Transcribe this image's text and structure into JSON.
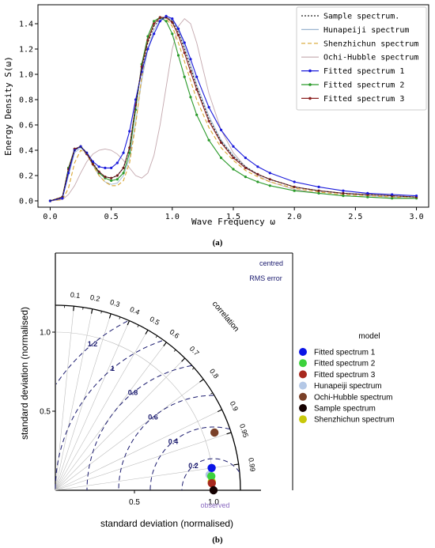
{
  "colors": {
    "sample": "#222222",
    "hunapeiji": "#9bb5d0",
    "shenzhichun": "#d9a530",
    "ochi": "#c4a8ae",
    "fitted1": "#1a1adb",
    "fitted2": "#2a9a2a",
    "fitted3": "#8b2020",
    "rms": "#1a1a6e",
    "correlation": "#000000",
    "observed": "#8a6ac0"
  },
  "panel_labels": {
    "a": "(a)",
    "b": "(b)"
  },
  "chart_data": [
    {
      "type": "line",
      "xlabel": "Wave Frequency ω",
      "ylabel": "Energy Density S(ω)",
      "xlim": [
        -0.1,
        3.1
      ],
      "ylim": [
        -0.05,
        1.55
      ],
      "xticks": [
        0.0,
        0.5,
        1.0,
        1.5,
        2.0,
        2.5,
        3.0
      ],
      "xtick_labels": [
        "0.0",
        "0.5",
        "1.0",
        "1.5",
        "2.0",
        "2.5",
        "3.0"
      ],
      "yticks": [
        0.0,
        0.2,
        0.4,
        0.6,
        0.8,
        1.0,
        1.2,
        1.4
      ],
      "ytick_labels": [
        "0.0",
        "0.2",
        "0.4",
        "0.6",
        "0.8",
        "1.0",
        "1.2",
        "1.4"
      ],
      "grid": false,
      "legend_position": "top-right",
      "series": [
        {
          "name": "Sample spectrum.",
          "key": "sample",
          "style": "dotted",
          "x": [
            0.0,
            0.1,
            0.15,
            0.2,
            0.25,
            0.3,
            0.35,
            0.4,
            0.45,
            0.5,
            0.55,
            0.6,
            0.65,
            0.7,
            0.75,
            0.8,
            0.85,
            0.9,
            0.95,
            1.0,
            1.05,
            1.1,
            1.15,
            1.2,
            1.3,
            1.4,
            1.5,
            1.6,
            1.7,
            1.8,
            2.0,
            2.2,
            2.4,
            2.6,
            2.8,
            3.0
          ],
          "y": [
            0.0,
            0.03,
            0.25,
            0.4,
            0.43,
            0.38,
            0.3,
            0.23,
            0.19,
            0.18,
            0.2,
            0.26,
            0.42,
            0.75,
            1.05,
            1.25,
            1.38,
            1.44,
            1.45,
            1.42,
            1.33,
            1.2,
            1.05,
            0.9,
            0.65,
            0.47,
            0.35,
            0.27,
            0.21,
            0.17,
            0.11,
            0.08,
            0.06,
            0.05,
            0.04,
            0.03
          ]
        },
        {
          "name": "Hunapeiji spectrum",
          "key": "hunapeiji",
          "style": "solid",
          "x": [
            0.0,
            0.1,
            0.15,
            0.2,
            0.25,
            0.3,
            0.35,
            0.4,
            0.45,
            0.5,
            0.55,
            0.6,
            0.65,
            0.7,
            0.75,
            0.8,
            0.85,
            0.9,
            0.95,
            1.0,
            1.05,
            1.1,
            1.15,
            1.2,
            1.3,
            1.4,
            1.5,
            1.6,
            1.7,
            1.8,
            2.0,
            2.2,
            2.4,
            2.6,
            2.8,
            3.0
          ],
          "y": [
            0.0,
            0.02,
            0.2,
            0.38,
            0.42,
            0.37,
            0.28,
            0.2,
            0.15,
            0.13,
            0.14,
            0.2,
            0.34,
            0.62,
            0.95,
            1.2,
            1.35,
            1.43,
            1.45,
            1.43,
            1.35,
            1.22,
            1.08,
            0.92,
            0.67,
            0.48,
            0.36,
            0.27,
            0.21,
            0.17,
            0.11,
            0.08,
            0.06,
            0.04,
            0.03,
            0.02
          ]
        },
        {
          "name": "Shenzhichun spectrum",
          "key": "shenzhichun",
          "style": "dashed",
          "x": [
            0.0,
            0.1,
            0.15,
            0.2,
            0.25,
            0.3,
            0.35,
            0.4,
            0.45,
            0.5,
            0.55,
            0.6,
            0.65,
            0.7,
            0.75,
            0.8,
            0.85,
            0.9,
            0.95,
            1.0,
            1.05,
            1.1,
            1.15,
            1.2,
            1.3,
            1.4,
            1.5,
            1.6,
            1.7,
            1.8,
            2.0,
            2.2,
            2.4,
            2.6,
            2.8,
            3.0
          ],
          "y": [
            0.0,
            0.01,
            0.1,
            0.3,
            0.4,
            0.37,
            0.28,
            0.2,
            0.15,
            0.12,
            0.12,
            0.16,
            0.3,
            0.6,
            0.98,
            1.25,
            1.4,
            1.45,
            1.44,
            1.38,
            1.25,
            1.1,
            0.95,
            0.8,
            0.58,
            0.42,
            0.32,
            0.24,
            0.19,
            0.15,
            0.1,
            0.07,
            0.05,
            0.04,
            0.03,
            0.02
          ]
        },
        {
          "name": "Ochi-Hubble spectrum",
          "key": "ochi",
          "style": "solid",
          "x": [
            0.0,
            0.1,
            0.15,
            0.2,
            0.25,
            0.3,
            0.35,
            0.4,
            0.45,
            0.5,
            0.55,
            0.6,
            0.65,
            0.7,
            0.75,
            0.8,
            0.85,
            0.9,
            0.95,
            1.0,
            1.05,
            1.1,
            1.15,
            1.2,
            1.25,
            1.3,
            1.4,
            1.5,
            1.6,
            1.7,
            1.8,
            2.0,
            2.2,
            2.4,
            2.6,
            2.8,
            3.0
          ],
          "y": [
            0.0,
            0.01,
            0.05,
            0.12,
            0.22,
            0.31,
            0.37,
            0.4,
            0.41,
            0.4,
            0.37,
            0.32,
            0.26,
            0.2,
            0.18,
            0.22,
            0.36,
            0.6,
            0.9,
            1.2,
            1.38,
            1.44,
            1.4,
            1.25,
            1.05,
            0.85,
            0.56,
            0.38,
            0.27,
            0.2,
            0.15,
            0.09,
            0.06,
            0.04,
            0.03,
            0.02,
            0.02
          ]
        },
        {
          "name": "Fitted spectrum 1",
          "key": "fitted1",
          "style": "marker",
          "x": [
            0.0,
            0.1,
            0.15,
            0.2,
            0.25,
            0.3,
            0.35,
            0.4,
            0.45,
            0.5,
            0.55,
            0.6,
            0.65,
            0.7,
            0.75,
            0.8,
            0.85,
            0.9,
            0.95,
            1.0,
            1.05,
            1.1,
            1.15,
            1.2,
            1.3,
            1.4,
            1.5,
            1.6,
            1.7,
            1.8,
            2.0,
            2.2,
            2.4,
            2.6,
            2.8,
            3.0
          ],
          "y": [
            0.0,
            0.02,
            0.22,
            0.4,
            0.43,
            0.38,
            0.31,
            0.27,
            0.26,
            0.26,
            0.3,
            0.38,
            0.55,
            0.8,
            1.02,
            1.2,
            1.32,
            1.42,
            1.46,
            1.44,
            1.36,
            1.25,
            1.12,
            0.98,
            0.74,
            0.56,
            0.43,
            0.34,
            0.27,
            0.22,
            0.15,
            0.11,
            0.08,
            0.06,
            0.05,
            0.04
          ]
        },
        {
          "name": "Fitted spectrum 2",
          "key": "fitted2",
          "style": "marker",
          "x": [
            0.0,
            0.1,
            0.15,
            0.2,
            0.25,
            0.3,
            0.35,
            0.4,
            0.45,
            0.5,
            0.55,
            0.6,
            0.65,
            0.7,
            0.75,
            0.8,
            0.85,
            0.9,
            0.95,
            1.0,
            1.05,
            1.1,
            1.15,
            1.2,
            1.3,
            1.4,
            1.5,
            1.6,
            1.7,
            1.8,
            2.0,
            2.2,
            2.4,
            2.6,
            2.8,
            3.0
          ],
          "y": [
            0.0,
            0.03,
            0.26,
            0.41,
            0.43,
            0.37,
            0.29,
            0.22,
            0.18,
            0.16,
            0.17,
            0.22,
            0.38,
            0.72,
            1.08,
            1.3,
            1.42,
            1.45,
            1.42,
            1.32,
            1.15,
            0.98,
            0.82,
            0.68,
            0.48,
            0.34,
            0.25,
            0.19,
            0.15,
            0.12,
            0.08,
            0.06,
            0.04,
            0.03,
            0.02,
            0.02
          ]
        },
        {
          "name": "Fitted spectrum 3",
          "key": "fitted3",
          "style": "marker",
          "x": [
            0.0,
            0.1,
            0.15,
            0.2,
            0.25,
            0.3,
            0.35,
            0.4,
            0.45,
            0.5,
            0.55,
            0.6,
            0.65,
            0.7,
            0.75,
            0.8,
            0.85,
            0.9,
            0.95,
            1.0,
            1.05,
            1.1,
            1.15,
            1.2,
            1.3,
            1.4,
            1.5,
            1.6,
            1.7,
            1.8,
            2.0,
            2.2,
            2.4,
            2.6,
            2.8,
            3.0
          ],
          "y": [
            0.0,
            0.03,
            0.25,
            0.41,
            0.43,
            0.37,
            0.29,
            0.23,
            0.19,
            0.18,
            0.2,
            0.26,
            0.42,
            0.76,
            1.06,
            1.27,
            1.4,
            1.45,
            1.45,
            1.41,
            1.31,
            1.17,
            1.02,
            0.88,
            0.63,
            0.46,
            0.34,
            0.26,
            0.21,
            0.17,
            0.11,
            0.08,
            0.06,
            0.05,
            0.04,
            0.03
          ]
        }
      ]
    },
    {
      "type": "scatter",
      "subtype": "taylor-diagram",
      "xlabel": "standard deviation (normalised)",
      "ylabel": "standard deviation (normalised)",
      "xlim": [
        0,
        1.3
      ],
      "ylim": [
        0,
        1.3
      ],
      "xtick_labels": [
        "0.5",
        "1.0"
      ],
      "ytick_labels": [
        "0.5",
        "1.0"
      ],
      "xticks": [
        0.5,
        1.0
      ],
      "yticks": [
        0.5,
        1.0
      ],
      "correlation_label": "correlation",
      "correlation_ticks": [
        0.1,
        0.2,
        0.3,
        0.4,
        0.5,
        0.6,
        0.7,
        0.8,
        0.9,
        0.95,
        0.99
      ],
      "correlation_tick_labels": [
        "0.1",
        "0.2",
        "0.3",
        "0.4",
        "0.5",
        "0.6",
        "0.7",
        "0.8",
        "0.9",
        "0.95",
        "0.99"
      ],
      "rms_title": [
        "centred",
        "RMS error"
      ],
      "rms_contours": [
        0.2,
        0.4,
        0.6,
        0.8,
        1.0,
        1.2
      ],
      "rms_labels": [
        "0.2",
        "0.4",
        "0.6",
        "0.8",
        "1",
        "1.2"
      ],
      "observed_label": "observed",
      "observed_point": {
        "std": 1.0,
        "corr": 1.0
      },
      "legend_title": "model",
      "legend_position": "right",
      "points": [
        {
          "name": "Fitted spectrum 1",
          "key": "p1",
          "color": "#0a14e6",
          "std": 0.998,
          "corr": 0.99
        },
        {
          "name": "Fitted spectrum 2",
          "key": "p2",
          "color": "#3cd23c",
          "std": 0.99,
          "corr": 0.996
        },
        {
          "name": "Fitted spectrum 3",
          "key": "p3",
          "color": "#a8281e",
          "std": 0.99,
          "corr": 0.999
        },
        {
          "name": "Hunapeiji spectrum",
          "key": "p4",
          "color": "#b4c8e6",
          "std": 0.98,
          "corr": 0.995
        },
        {
          "name": "Ochi-Hubble spectrum",
          "key": "p5",
          "color": "#7a4028",
          "std": 1.07,
          "corr": 0.94
        },
        {
          "name": "Sample spectrum",
          "key": "p6",
          "color": "#140000",
          "std": 1.0,
          "corr": 1.0
        },
        {
          "name": "Shenzhichun spectrum",
          "key": "p7",
          "color": "#c8c80a",
          "std": 0.99,
          "corr": 0.9985
        }
      ]
    }
  ]
}
